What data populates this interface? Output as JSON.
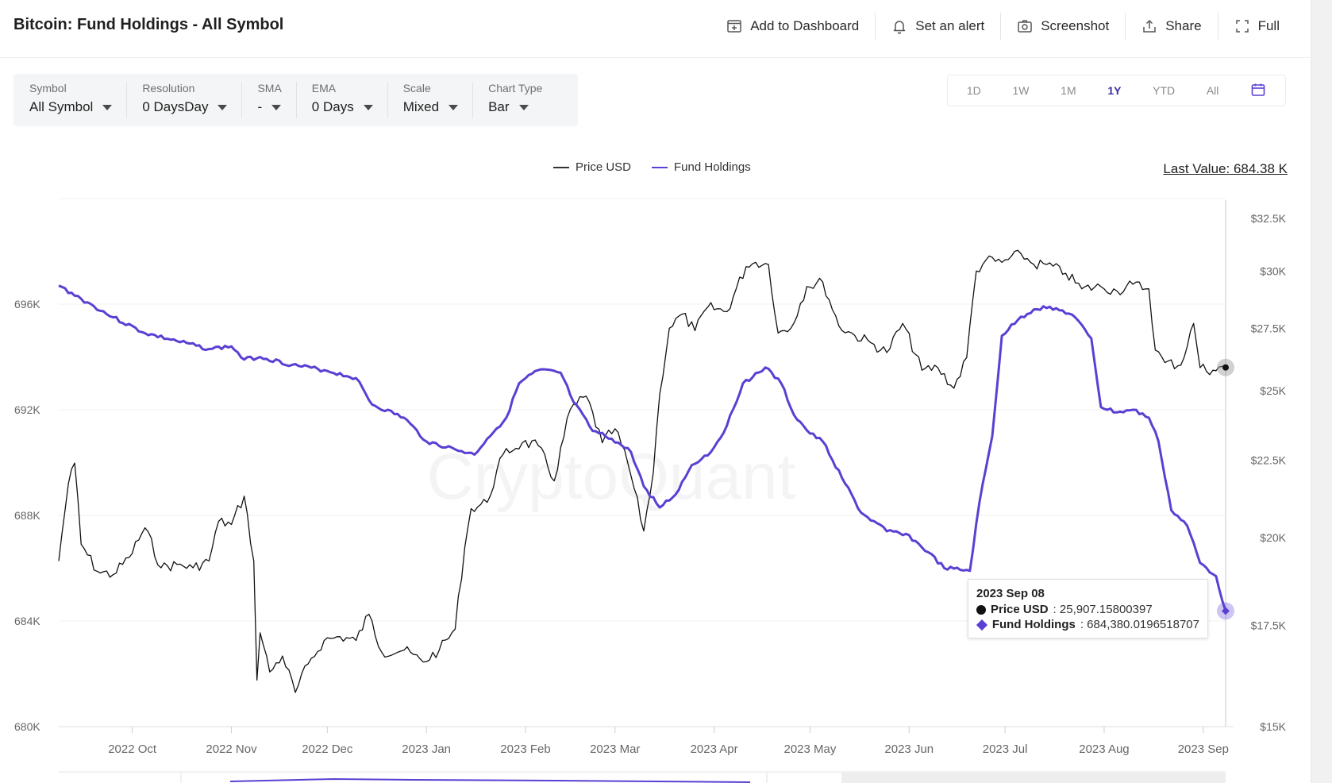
{
  "header": {
    "title": "Bitcoin: Fund Holdings - All Symbol",
    "actions": {
      "dashboard": "Add to Dashboard",
      "alert": "Set an alert",
      "screenshot": "Screenshot",
      "share": "Share",
      "full": "Full"
    }
  },
  "controls": [
    {
      "label": "Symbol",
      "value": "All Symbol"
    },
    {
      "label": "Resolution",
      "value": "0 DaysDay"
    },
    {
      "label": "SMA",
      "value": "-"
    },
    {
      "label": "EMA",
      "value": "0 Days"
    },
    {
      "label": "Scale",
      "value": "Mixed"
    },
    {
      "label": "Chart Type",
      "value": "Bar"
    }
  ],
  "ranges": [
    "1D",
    "1W",
    "1M",
    "1Y",
    "YTD",
    "All"
  ],
  "active_range": "1Y",
  "last_value": "Last Value: 684.38 K",
  "watermark": "CryptoQuant",
  "tooltip": {
    "date": "2023 Sep 08",
    "price_label": "Price USD",
    "price_value": ": 25,907.15800397",
    "holdings_label": "Fund Holdings",
    "holdings_value": ": 684,380.0196518707"
  },
  "colors": {
    "price": "#111111",
    "holdings": "#5b3fd3",
    "axis_text": "#666666",
    "grid": "#f0f0f0"
  },
  "chart_data": {
    "type": "line",
    "legend_placement": "top-center",
    "grid": true,
    "x_ticks": [
      "2022 Oct",
      "2022 Nov",
      "2022 Dec",
      "2023 Jan",
      "2023 Feb",
      "2023 Mar",
      "2023 Apr",
      "2023 May",
      "2023 Jun",
      "2023 Jul",
      "2023 Aug",
      "2023 Sep"
    ],
    "x_range": [
      "2022-09-08",
      "2023-09-08"
    ],
    "left_axis": {
      "ticks": [
        "680K",
        "684K",
        "688K",
        "692K",
        "696K"
      ],
      "values": [
        680000,
        684000,
        688000,
        692000,
        696000
      ],
      "range": [
        680000,
        700000
      ]
    },
    "right_axis": {
      "ticks": [
        "$15K",
        "$17.5K",
        "$20K",
        "$22.5K",
        "$25K",
        "$27.5K",
        "$30K",
        "$32.5K"
      ],
      "values": [
        15000,
        17500,
        20000,
        22500,
        25000,
        27500,
        30000,
        32500
      ],
      "range": [
        15000,
        33500
      ],
      "scale": "log"
    },
    "series": [
      {
        "name": "Price USD",
        "axis": "right",
        "points": [
          [
            "2022-09-08",
            19300
          ],
          [
            "2022-09-11",
            21700
          ],
          [
            "2022-09-13",
            22400
          ],
          [
            "2022-09-15",
            19800
          ],
          [
            "2022-09-20",
            19000
          ],
          [
            "2022-09-25",
            18900
          ],
          [
            "2022-09-30",
            19400
          ],
          [
            "2022-10-05",
            20300
          ],
          [
            "2022-10-10",
            19100
          ],
          [
            "2022-10-15",
            19200
          ],
          [
            "2022-10-20",
            19100
          ],
          [
            "2022-10-25",
            19300
          ],
          [
            "2022-10-28",
            20500
          ],
          [
            "2022-11-01",
            20400
          ],
          [
            "2022-11-05",
            21300
          ],
          [
            "2022-11-08",
            19300
          ],
          [
            "2022-11-09",
            16100
          ],
          [
            "2022-11-10",
            17300
          ],
          [
            "2022-11-13",
            16300
          ],
          [
            "2022-11-17",
            16700
          ],
          [
            "2022-11-21",
            15800
          ],
          [
            "2022-11-25",
            16500
          ],
          [
            "2022-11-30",
            17100
          ],
          [
            "2022-12-05",
            17200
          ],
          [
            "2022-12-10",
            17100
          ],
          [
            "2022-12-14",
            17800
          ],
          [
            "2022-12-18",
            16800
          ],
          [
            "2022-12-25",
            16850
          ],
          [
            "2022-12-31",
            16550
          ],
          [
            "2023-01-05",
            16850
          ],
          [
            "2023-01-10",
            17400
          ],
          [
            "2023-01-13",
            19700
          ],
          [
            "2023-01-15",
            20900
          ],
          [
            "2023-01-20",
            21100
          ],
          [
            "2023-01-25",
            22700
          ],
          [
            "2023-01-31",
            23100
          ],
          [
            "2023-02-05",
            23000
          ],
          [
            "2023-02-10",
            21800
          ],
          [
            "2023-02-15",
            24300
          ],
          [
            "2023-02-20",
            24800
          ],
          [
            "2023-02-25",
            23100
          ],
          [
            "2023-03-01",
            23600
          ],
          [
            "2023-03-05",
            22400
          ],
          [
            "2023-03-10",
            20200
          ],
          [
            "2023-03-13",
            22100
          ],
          [
            "2023-03-15",
            24900
          ],
          [
            "2023-03-18",
            27500
          ],
          [
            "2023-03-22",
            28100
          ],
          [
            "2023-03-26",
            27400
          ],
          [
            "2023-03-30",
            28400
          ],
          [
            "2023-04-05",
            28200
          ],
          [
            "2023-04-11",
            30200
          ],
          [
            "2023-04-14",
            30400
          ],
          [
            "2023-04-18",
            30300
          ],
          [
            "2023-04-21",
            27300
          ],
          [
            "2023-04-25",
            27500
          ],
          [
            "2023-04-30",
            29300
          ],
          [
            "2023-05-05",
            29500
          ],
          [
            "2023-05-10",
            27600
          ],
          [
            "2023-05-15",
            27200
          ],
          [
            "2023-05-20",
            26900
          ],
          [
            "2023-05-25",
            26500
          ],
          [
            "2023-05-30",
            27700
          ],
          [
            "2023-06-05",
            25800
          ],
          [
            "2023-06-10",
            25900
          ],
          [
            "2023-06-15",
            25100
          ],
          [
            "2023-06-19",
            26300
          ],
          [
            "2023-06-22",
            30000
          ],
          [
            "2023-06-25",
            30500
          ],
          [
            "2023-06-30",
            30400
          ],
          [
            "2023-07-06",
            30800
          ],
          [
            "2023-07-10",
            30300
          ],
          [
            "2023-07-14",
            30300
          ],
          [
            "2023-07-20",
            29900
          ],
          [
            "2023-07-25",
            29200
          ],
          [
            "2023-07-31",
            29300
          ],
          [
            "2023-08-05",
            29100
          ],
          [
            "2023-08-10",
            29400
          ],
          [
            "2023-08-15",
            29200
          ],
          [
            "2023-08-17",
            26600
          ],
          [
            "2023-08-20",
            26100
          ],
          [
            "2023-08-25",
            26000
          ],
          [
            "2023-08-29",
            27700
          ],
          [
            "2023-08-31",
            25900
          ],
          [
            "2023-09-04",
            25800
          ],
          [
            "2023-09-08",
            25907
          ]
        ]
      },
      {
        "name": "Fund Holdings",
        "axis": "left",
        "points": [
          [
            "2022-09-08",
            696700
          ],
          [
            "2022-09-15",
            696200
          ],
          [
            "2022-09-25",
            695500
          ],
          [
            "2022-10-05",
            694900
          ],
          [
            "2022-10-15",
            694600
          ],
          [
            "2022-10-25",
            694300
          ],
          [
            "2022-11-01",
            694400
          ],
          [
            "2022-11-05",
            693900
          ],
          [
            "2022-11-10",
            694000
          ],
          [
            "2022-11-20",
            693700
          ],
          [
            "2022-11-30",
            693500
          ],
          [
            "2022-12-10",
            693200
          ],
          [
            "2022-12-15",
            692200
          ],
          [
            "2022-12-25",
            691700
          ],
          [
            "2023-01-01",
            690800
          ],
          [
            "2023-01-10",
            690500
          ],
          [
            "2023-01-16",
            690300
          ],
          [
            "2023-01-20",
            690900
          ],
          [
            "2023-01-26",
            691700
          ],
          [
            "2023-01-30",
            693000
          ],
          [
            "2023-02-05",
            693500
          ],
          [
            "2023-02-12",
            693400
          ],
          [
            "2023-02-16",
            692300
          ],
          [
            "2023-02-22",
            691200
          ],
          [
            "2023-02-28",
            690900
          ],
          [
            "2023-03-06",
            690400
          ],
          [
            "2023-03-10",
            689100
          ],
          [
            "2023-03-15",
            688300
          ],
          [
            "2023-03-20",
            688800
          ],
          [
            "2023-03-25",
            689900
          ],
          [
            "2023-03-31",
            690400
          ],
          [
            "2023-04-05",
            691400
          ],
          [
            "2023-04-10",
            693000
          ],
          [
            "2023-04-17",
            693600
          ],
          [
            "2023-04-22",
            693000
          ],
          [
            "2023-04-26",
            691800
          ],
          [
            "2023-05-01",
            691100
          ],
          [
            "2023-05-05",
            690800
          ],
          [
            "2023-05-12",
            689200
          ],
          [
            "2023-05-17",
            688100
          ],
          [
            "2023-05-25",
            687400
          ],
          [
            "2023-05-31",
            687300
          ],
          [
            "2023-06-07",
            686600
          ],
          [
            "2023-06-12",
            686000
          ],
          [
            "2023-06-20",
            685900
          ],
          [
            "2023-06-23",
            688500
          ],
          [
            "2023-06-27",
            691000
          ],
          [
            "2023-06-30",
            694800
          ],
          [
            "2023-07-05",
            695400
          ],
          [
            "2023-07-10",
            695800
          ],
          [
            "2023-07-15",
            695900
          ],
          [
            "2023-07-22",
            695600
          ],
          [
            "2023-07-28",
            694700
          ],
          [
            "2023-07-31",
            692100
          ],
          [
            "2023-08-05",
            691900
          ],
          [
            "2023-08-10",
            692000
          ],
          [
            "2023-08-15",
            691700
          ],
          [
            "2023-08-18",
            690800
          ],
          [
            "2023-08-22",
            688200
          ],
          [
            "2023-08-27",
            687600
          ],
          [
            "2023-08-31",
            686200
          ],
          [
            "2023-09-05",
            685700
          ],
          [
            "2023-09-08",
            684380
          ]
        ]
      }
    ]
  }
}
